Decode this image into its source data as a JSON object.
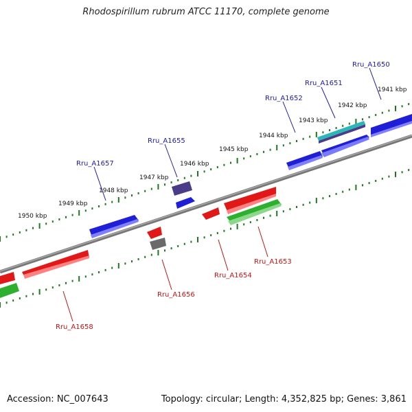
{
  "title": "Rhodospirillum rubrum ATCC 11170, complete genome",
  "footer": {
    "accession": "Accession: NC_007643",
    "summary": "Topology: circular; Length: 4,352,825 bp; Genes: 3,861"
  },
  "colors": {
    "forward_gene": "#1f1fd6",
    "reverse_gene": "#e01818",
    "green_gene": "#2eb02e",
    "dark_gene": "#4a3c86",
    "gray_gene": "#6a6a6a",
    "label_forward": "#1a1ab0",
    "label_reverse": "#c81010",
    "ruler": "#1b7a1b"
  },
  "kbp_labels": [
    "1941 kbp",
    "1942 kbp",
    "1943 kbp",
    "1944 kbp",
    "1945 kbp",
    "1946 kbp",
    "1947 kbp",
    "1948 kbp",
    "1949 kbp",
    "1950 kbp"
  ],
  "forward_genes": [
    "Rru_A1650",
    "Rru_A1651",
    "Rru_A1652",
    "Rru_A1655",
    "Rru_A1657"
  ],
  "reverse_genes": [
    "Rru_A1653",
    "Rru_A1654",
    "Rru_A1656",
    "Rru_A1658"
  ]
}
